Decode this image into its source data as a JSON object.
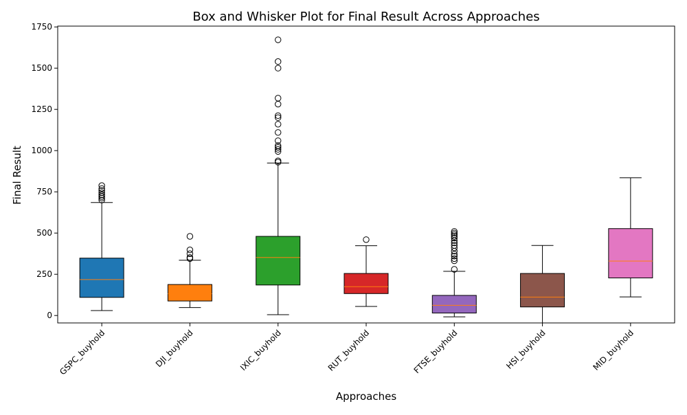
{
  "chart_data": {
    "type": "box",
    "title": "Box and Whisker Plot for Final Result Across Approaches",
    "xlabel": "Approaches",
    "ylabel": "Final Result",
    "ylim": [
      -45,
      1755
    ],
    "yticks": [
      0,
      250,
      500,
      750,
      1000,
      1250,
      1500,
      1750
    ],
    "grid": false,
    "median_color": "#ff7f0e",
    "categories": [
      "GSPC_buyhold",
      "DJI_buyhold",
      "IXIC_buyhold",
      "RUT_buyhold",
      "FTSE_buyhold",
      "HSI_buyhold",
      "MID_buyhold"
    ],
    "series": [
      {
        "name": "GSPC_buyhold",
        "color": "#1f77b4",
        "whisker_low": 30,
        "q1": 110,
        "median": 218,
        "q3": 348,
        "whisker_high": 685,
        "outliers": [
          700,
          712,
          722,
          732,
          745,
          758,
          770,
          788
        ]
      },
      {
        "name": "DJI_buyhold",
        "color": "#ff7f0e",
        "whisker_low": 48,
        "q1": 88,
        "median": 132,
        "q3": 188,
        "whisker_high": 335,
        "outliers": [
          345,
          352,
          375,
          398,
          480
        ]
      },
      {
        "name": "IXIC_buyhold",
        "color": "#2ca02c",
        "whisker_low": 5,
        "q1": 185,
        "median": 352,
        "q3": 480,
        "whisker_high": 925,
        "outliers": [
          930,
          938,
          995,
          1008,
          1020,
          1030,
          1060,
          1110,
          1160,
          1200,
          1212,
          1282,
          1318,
          1500,
          1540,
          1672
        ]
      },
      {
        "name": "RUT_buyhold",
        "color": "#d62728",
        "whisker_low": 55,
        "q1": 133,
        "median": 175,
        "q3": 255,
        "whisker_high": 423,
        "outliers": [
          460
        ]
      },
      {
        "name": "FTSE_buyhold",
        "color": "#9467bd",
        "whisker_low": -8,
        "q1": 15,
        "median": 62,
        "q3": 122,
        "whisker_high": 268,
        "outliers": [
          280,
          332,
          345,
          360,
          372,
          390,
          410,
          425,
          440,
          455,
          470,
          480,
          490,
          500,
          510
        ]
      },
      {
        "name": "HSI_buyhold",
        "color": "#8c564b",
        "whisker_low": -45,
        "q1": 52,
        "median": 112,
        "q3": 255,
        "whisker_high": 425,
        "outliers": []
      },
      {
        "name": "MID_buyhold",
        "color": "#e377c2",
        "whisker_low": 113,
        "q1": 228,
        "median": 330,
        "q3": 527,
        "whisker_high": 835,
        "outliers": []
      }
    ]
  }
}
